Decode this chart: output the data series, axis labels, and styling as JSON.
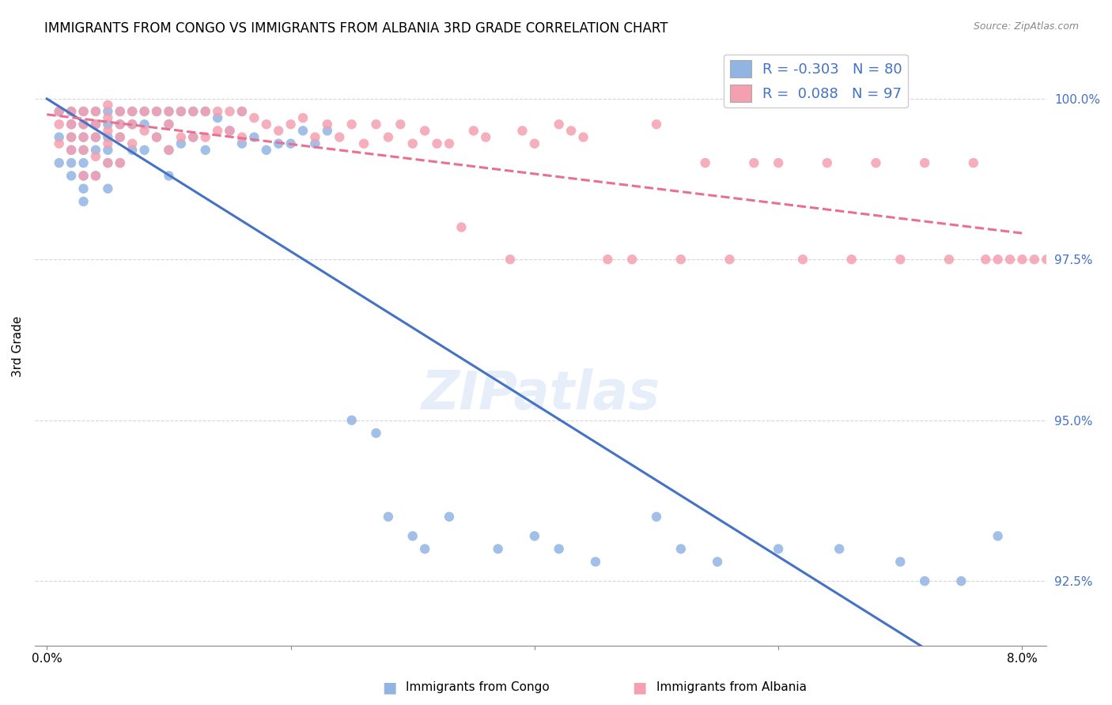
{
  "title": "IMMIGRANTS FROM CONGO VS IMMIGRANTS FROM ALBANIA 3RD GRADE CORRELATION CHART",
  "source": "Source: ZipAtlas.com",
  "ylabel": "3rd Grade",
  "yaxis_values": [
    0.925,
    0.95,
    0.975,
    1.0
  ],
  "legend_congo_R": "-0.303",
  "legend_congo_N": "80",
  "legend_albania_R": "0.088",
  "legend_albania_N": "97",
  "color_congo": "#92b4e3",
  "color_albania": "#f4a0b0",
  "color_congo_line": "#4472c4",
  "color_albania_line": "#e87090",
  "watermark": "ZIPatlas",
  "congo_points_x": [
    0.001,
    0.001,
    0.001,
    0.002,
    0.002,
    0.002,
    0.002,
    0.002,
    0.002,
    0.003,
    0.003,
    0.003,
    0.003,
    0.003,
    0.003,
    0.003,
    0.003,
    0.004,
    0.004,
    0.004,
    0.004,
    0.004,
    0.005,
    0.005,
    0.005,
    0.005,
    0.005,
    0.005,
    0.006,
    0.006,
    0.006,
    0.006,
    0.007,
    0.007,
    0.007,
    0.008,
    0.008,
    0.008,
    0.009,
    0.009,
    0.01,
    0.01,
    0.01,
    0.01,
    0.011,
    0.011,
    0.012,
    0.012,
    0.013,
    0.013,
    0.014,
    0.015,
    0.016,
    0.016,
    0.017,
    0.018,
    0.019,
    0.02,
    0.021,
    0.022,
    0.023,
    0.025,
    0.027,
    0.028,
    0.03,
    0.031,
    0.033,
    0.037,
    0.04,
    0.042,
    0.045,
    0.05,
    0.052,
    0.055,
    0.06,
    0.065,
    0.07,
    0.072,
    0.075,
    0.078
  ],
  "congo_points_y": [
    0.998,
    0.994,
    0.99,
    0.998,
    0.996,
    0.994,
    0.992,
    0.99,
    0.988,
    0.998,
    0.996,
    0.994,
    0.992,
    0.99,
    0.988,
    0.986,
    0.984,
    0.998,
    0.996,
    0.994,
    0.992,
    0.988,
    0.998,
    0.996,
    0.994,
    0.992,
    0.99,
    0.986,
    0.998,
    0.996,
    0.994,
    0.99,
    0.998,
    0.996,
    0.992,
    0.998,
    0.996,
    0.992,
    0.998,
    0.994,
    0.998,
    0.996,
    0.992,
    0.988,
    0.998,
    0.993,
    0.998,
    0.994,
    0.998,
    0.992,
    0.997,
    0.995,
    0.998,
    0.993,
    0.994,
    0.992,
    0.993,
    0.993,
    0.995,
    0.993,
    0.995,
    0.95,
    0.948,
    0.935,
    0.932,
    0.93,
    0.935,
    0.93,
    0.932,
    0.93,
    0.928,
    0.935,
    0.93,
    0.928,
    0.93,
    0.93,
    0.928,
    0.925,
    0.925,
    0.932
  ],
  "albania_points_x": [
    0.001,
    0.001,
    0.001,
    0.002,
    0.002,
    0.002,
    0.002,
    0.003,
    0.003,
    0.003,
    0.003,
    0.003,
    0.004,
    0.004,
    0.004,
    0.004,
    0.004,
    0.005,
    0.005,
    0.005,
    0.005,
    0.005,
    0.006,
    0.006,
    0.006,
    0.006,
    0.007,
    0.007,
    0.007,
    0.008,
    0.008,
    0.009,
    0.009,
    0.01,
    0.01,
    0.01,
    0.011,
    0.011,
    0.012,
    0.012,
    0.013,
    0.013,
    0.014,
    0.014,
    0.015,
    0.015,
    0.016,
    0.016,
    0.017,
    0.018,
    0.019,
    0.02,
    0.021,
    0.022,
    0.023,
    0.024,
    0.025,
    0.026,
    0.027,
    0.028,
    0.029,
    0.03,
    0.031,
    0.032,
    0.033,
    0.034,
    0.035,
    0.036,
    0.038,
    0.039,
    0.04,
    0.042,
    0.043,
    0.044,
    0.046,
    0.048,
    0.05,
    0.052,
    0.054,
    0.056,
    0.058,
    0.06,
    0.062,
    0.064,
    0.066,
    0.068,
    0.07,
    0.072,
    0.074,
    0.076,
    0.077,
    0.078,
    0.079,
    0.08,
    0.081,
    0.082,
    0.083
  ],
  "albania_points_y": [
    0.998,
    0.996,
    0.993,
    0.998,
    0.996,
    0.994,
    0.992,
    0.998,
    0.996,
    0.994,
    0.992,
    0.988,
    0.998,
    0.996,
    0.994,
    0.991,
    0.988,
    0.999,
    0.997,
    0.995,
    0.993,
    0.99,
    0.998,
    0.996,
    0.994,
    0.99,
    0.998,
    0.996,
    0.993,
    0.998,
    0.995,
    0.998,
    0.994,
    0.998,
    0.996,
    0.992,
    0.998,
    0.994,
    0.998,
    0.994,
    0.998,
    0.994,
    0.998,
    0.995,
    0.998,
    0.995,
    0.998,
    0.994,
    0.997,
    0.996,
    0.995,
    0.996,
    0.997,
    0.994,
    0.996,
    0.994,
    0.996,
    0.993,
    0.996,
    0.994,
    0.996,
    0.993,
    0.995,
    0.993,
    0.993,
    0.98,
    0.995,
    0.994,
    0.975,
    0.995,
    0.993,
    0.996,
    0.995,
    0.994,
    0.975,
    0.975,
    0.996,
    0.975,
    0.99,
    0.975,
    0.99,
    0.99,
    0.975,
    0.99,
    0.975,
    0.99,
    0.975,
    0.99,
    0.975,
    0.99,
    0.975,
    0.975,
    0.975,
    0.975,
    0.975,
    0.975,
    0.975
  ]
}
